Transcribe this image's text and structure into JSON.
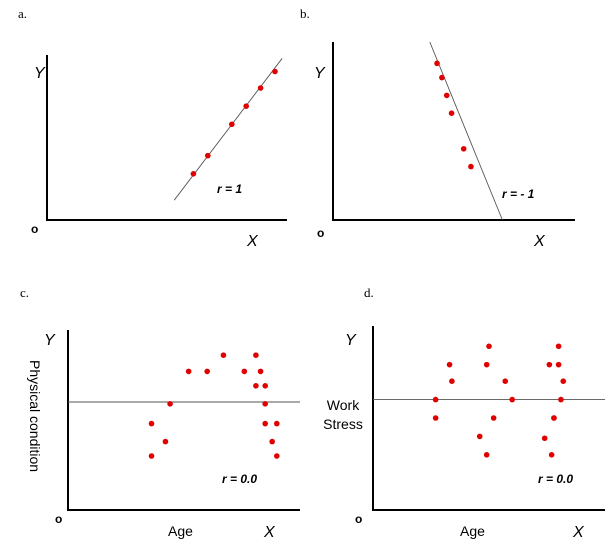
{
  "chart_data": [
    {
      "panel": "a.",
      "type": "scatter",
      "ylabel": "Y",
      "xlabel": "X",
      "origin_label": "o",
      "annotation": "r = 1",
      "xlim": [
        0,
        10
      ],
      "ylim": [
        0,
        10
      ],
      "fit_line": [
        [
          5.3,
          1.2
        ],
        [
          9.8,
          9.8
        ]
      ],
      "points": [
        [
          6.1,
          2.8
        ],
        [
          6.7,
          3.9
        ],
        [
          7.7,
          5.8
        ],
        [
          8.3,
          6.9
        ],
        [
          8.9,
          8.0
        ],
        [
          9.5,
          9.0
        ]
      ]
    },
    {
      "panel": "b.",
      "type": "scatter",
      "ylabel": "Y",
      "xlabel": "X",
      "origin_label": "o",
      "annotation": "r = - 1",
      "xlim": [
        0,
        10
      ],
      "ylim": [
        0,
        10
      ],
      "fit_line": [
        [
          4.0,
          10.0
        ],
        [
          7.0,
          0.0
        ]
      ],
      "points": [
        [
          4.3,
          8.8
        ],
        [
          4.5,
          8.0
        ],
        [
          4.7,
          7.0
        ],
        [
          4.9,
          6.0
        ],
        [
          5.4,
          4.0
        ],
        [
          5.7,
          3.0
        ]
      ]
    },
    {
      "panel": "c.",
      "type": "scatter",
      "ylabel": "Y",
      "xlabel": "X",
      "y_axis_title": "Physical condition",
      "x_axis_title": "Age",
      "origin_label": "o",
      "annotation": "r = 0.0",
      "xlim": [
        0,
        10
      ],
      "ylim": [
        0,
        10
      ],
      "reference_y": 6.0,
      "points": [
        [
          3.6,
          4.8
        ],
        [
          3.6,
          3.0
        ],
        [
          4.2,
          3.8
        ],
        [
          4.4,
          5.9
        ],
        [
          5.2,
          7.7
        ],
        [
          6.0,
          7.7
        ],
        [
          6.7,
          8.6
        ],
        [
          7.6,
          7.7
        ],
        [
          8.1,
          8.6
        ],
        [
          8.1,
          6.9
        ],
        [
          8.3,
          7.7
        ],
        [
          8.5,
          6.9
        ],
        [
          8.5,
          5.9
        ],
        [
          8.5,
          4.8
        ],
        [
          8.8,
          3.8
        ],
        [
          9.0,
          4.8
        ],
        [
          9.0,
          3.0
        ]
      ]
    },
    {
      "panel": "d.",
      "type": "scatter",
      "ylabel": "Y",
      "xlabel": "X",
      "y_axis_title": "Work\nStress",
      "x_axis_title": "Age",
      "origin_label": "o",
      "annotation": "r = 0.0",
      "xlim": [
        0,
        10
      ],
      "ylim": [
        0,
        10
      ],
      "reference_y": 6.0,
      "points": [
        [
          2.7,
          6.0
        ],
        [
          2.7,
          5.0
        ],
        [
          3.3,
          7.9
        ],
        [
          3.4,
          7.0
        ],
        [
          4.6,
          4.0
        ],
        [
          4.9,
          7.9
        ],
        [
          4.9,
          3.0
        ],
        [
          5.0,
          8.9
        ],
        [
          5.2,
          5.0
        ],
        [
          5.7,
          7.0
        ],
        [
          6.0,
          6.0
        ],
        [
          7.4,
          3.9
        ],
        [
          7.6,
          7.9
        ],
        [
          7.7,
          3.0
        ],
        [
          7.8,
          5.0
        ],
        [
          8.0,
          8.9
        ],
        [
          8.0,
          7.9
        ],
        [
          8.2,
          7.0
        ],
        [
          8.1,
          6.0
        ],
        [
          7.8,
          5.0
        ]
      ]
    }
  ]
}
